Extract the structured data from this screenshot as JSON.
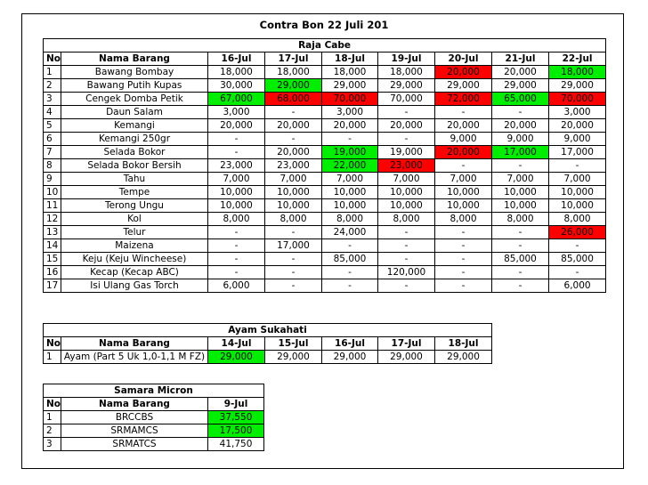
{
  "title": "Contra Bon 22 Juli 201",
  "colors": {
    "green": "#00ee00",
    "red": "#ff0000"
  },
  "tables": [
    {
      "name": "Raja Cabe",
      "headers": [
        "No",
        "Nama Barang",
        "16-Jul",
        "17-Jul",
        "18-Jul",
        "19-Jul",
        "20-Jul",
        "21-Jul",
        "22-Jul"
      ],
      "rows": [
        {
          "cells": [
            "1",
            "Bawang Bombay",
            "18,000",
            "18,000",
            "18,000",
            "18,000",
            "20,000",
            "20,000",
            "18,000"
          ],
          "hl": [
            "",
            "",
            "",
            "",
            "",
            "",
            "r",
            "",
            "g"
          ]
        },
        {
          "cells": [
            "2",
            "Bawang Putih Kupas",
            "30,000",
            "29,000",
            "29,000",
            "29,000",
            "29,000",
            "29,000",
            "29,000"
          ],
          "hl": [
            "",
            "",
            "",
            "g",
            "",
            "",
            "",
            "",
            ""
          ]
        },
        {
          "cells": [
            "3",
            "Cengek Domba Petik",
            "67,000",
            "68,000",
            "70,000",
            "70,000",
            "72,000",
            "65,000",
            "70,000"
          ],
          "hl": [
            "",
            "",
            "g",
            "r",
            "r",
            "",
            "r",
            "g",
            "r"
          ]
        },
        {
          "cells": [
            "4",
            "Daun Salam",
            "3,000",
            "-",
            "3,000",
            "-",
            "-",
            "-",
            "3,000"
          ],
          "hl": [
            "",
            "",
            "",
            "",
            "",
            "",
            "",
            "",
            ""
          ]
        },
        {
          "cells": [
            "5",
            "Kemangi",
            "20,000",
            "20,000",
            "20,000",
            "20,000",
            "20,000",
            "20,000",
            "20,000"
          ],
          "hl": [
            "",
            "",
            "",
            "",
            "",
            "",
            "",
            "",
            ""
          ]
        },
        {
          "cells": [
            "6",
            "Kemangi 250gr",
            "-",
            "-",
            "-",
            "-",
            "9,000",
            "9,000",
            "9,000"
          ],
          "hl": [
            "",
            "",
            "",
            "",
            "",
            "",
            "",
            "",
            ""
          ]
        },
        {
          "cells": [
            "7",
            "Selada Bokor",
            "-",
            "20,000",
            "19,000",
            "19,000",
            "20,000",
            "17,000",
            "17,000"
          ],
          "hl": [
            "",
            "",
            "",
            "",
            "g",
            "",
            "r",
            "g",
            ""
          ]
        },
        {
          "cells": [
            "8",
            "Selada Bokor Bersih",
            "23,000",
            "23,000",
            "22,000",
            "23,000",
            "-",
            "-",
            "-"
          ],
          "hl": [
            "",
            "",
            "",
            "",
            "g",
            "r",
            "",
            "",
            ""
          ]
        },
        {
          "cells": [
            "9",
            "Tahu",
            "7,000",
            "7,000",
            "7,000",
            "7,000",
            "7,000",
            "7,000",
            "7,000"
          ],
          "hl": [
            "",
            "",
            "",
            "",
            "",
            "",
            "",
            "",
            ""
          ]
        },
        {
          "cells": [
            "10",
            "Tempe",
            "10,000",
            "10,000",
            "10,000",
            "10,000",
            "10,000",
            "10,000",
            "10,000"
          ],
          "hl": [
            "",
            "",
            "",
            "",
            "",
            "",
            "",
            "",
            ""
          ]
        },
        {
          "cells": [
            "11",
            "Terong Ungu",
            "10,000",
            "10,000",
            "10,000",
            "10,000",
            "10,000",
            "10,000",
            "10,000"
          ],
          "hl": [
            "",
            "",
            "",
            "",
            "",
            "",
            "",
            "",
            ""
          ]
        },
        {
          "cells": [
            "12",
            "Kol",
            "8,000",
            "8,000",
            "8,000",
            "8,000",
            "8,000",
            "8,000",
            "8,000"
          ],
          "hl": [
            "",
            "",
            "",
            "",
            "",
            "",
            "",
            "",
            ""
          ]
        },
        {
          "cells": [
            "13",
            "Telur",
            "-",
            "-",
            "24,000",
            "-",
            "-",
            "-",
            "26,000"
          ],
          "hl": [
            "",
            "",
            "",
            "",
            "",
            "",
            "",
            "",
            "r"
          ]
        },
        {
          "cells": [
            "14",
            "Maizena",
            "-",
            "17,000",
            "-",
            "-",
            "-",
            "-",
            "-"
          ],
          "hl": [
            "",
            "",
            "",
            "",
            "",
            "",
            "",
            "",
            ""
          ]
        },
        {
          "cells": [
            "15",
            "Keju (Keju Wincheese)",
            "-",
            "-",
            "85,000",
            "-",
            "-",
            "85,000",
            "85,000"
          ],
          "hl": [
            "",
            "",
            "",
            "",
            "",
            "",
            "",
            "",
            ""
          ]
        },
        {
          "cells": [
            "16",
            "Kecap (Kecap ABC)",
            "-",
            "-",
            "-",
            "120,000",
            "-",
            "-",
            "-"
          ],
          "hl": [
            "",
            "",
            "",
            "",
            "",
            "",
            "",
            "",
            ""
          ]
        },
        {
          "cells": [
            "17",
            "Isi Ulang Gas Torch",
            "6,000",
            "-",
            "-",
            "-",
            "-",
            "-",
            "6,000"
          ],
          "hl": [
            "",
            "",
            "",
            "",
            "",
            "",
            "",
            "",
            ""
          ]
        }
      ]
    },
    {
      "name": "Ayam Sukahati",
      "headers": [
        "No",
        "Nama Barang",
        "14-Jul",
        "15-Jul",
        "16-Jul",
        "17-Jul",
        "18-Jul"
      ],
      "rows": [
        {
          "cells": [
            "1",
            "Ayam (Part 5 Uk 1,0-1,1 M FZ)",
            "29,000",
            "29,000",
            "29,000",
            "29,000",
            "29,000"
          ],
          "hl": [
            "",
            "",
            "g",
            "",
            "",
            "",
            ""
          ]
        }
      ]
    },
    {
      "name": "Samara Micron",
      "headers": [
        "No",
        "Nama Barang",
        "9-Jul"
      ],
      "rows": [
        {
          "cells": [
            "1",
            "BRCCBS",
            "37,550"
          ],
          "hl": [
            "",
            "",
            "g"
          ]
        },
        {
          "cells": [
            "2",
            "SRMAMCS",
            "17,500"
          ],
          "hl": [
            "",
            "",
            "g"
          ]
        },
        {
          "cells": [
            "3",
            "SRMATCS",
            "41,750"
          ],
          "hl": [
            "",
            "",
            ""
          ]
        }
      ]
    }
  ]
}
